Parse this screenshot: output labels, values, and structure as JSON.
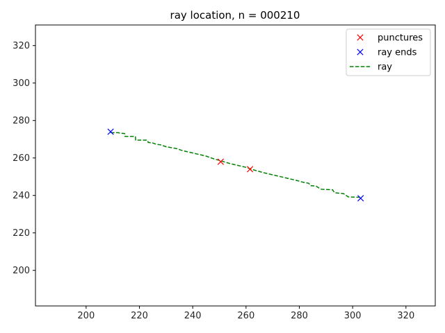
{
  "chart_data": {
    "type": "line",
    "title": "ray location, n = 000210",
    "xlabel": "",
    "ylabel": "",
    "xlim": [
      181,
      331
    ],
    "ylim": [
      181,
      331
    ],
    "xticks": [
      200,
      220,
      240,
      260,
      280,
      300,
      320
    ],
    "yticks": [
      200,
      220,
      240,
      260,
      280,
      300,
      320
    ],
    "grid": false,
    "legend_position": "top-right",
    "series": [
      {
        "name": "punctures",
        "style": "x-markers",
        "color": "#ff0000",
        "points": [
          [
            250.5,
            258
          ],
          [
            261.5,
            254
          ]
        ]
      },
      {
        "name": "ray ends",
        "style": "x-markers",
        "color": "#0000ff",
        "points": [
          [
            209.2,
            274
          ],
          [
            303,
            238.5
          ]
        ]
      },
      {
        "name": "ray",
        "style": "dashed-line",
        "color": "#008000",
        "points": [
          [
            209.2,
            273.5
          ],
          [
            212,
            273.5
          ],
          [
            212.6,
            273.3
          ],
          [
            214.5,
            273
          ],
          [
            214.6,
            271.5
          ],
          [
            218.5,
            271.5
          ],
          [
            218.6,
            269.5
          ],
          [
            223,
            269.5
          ],
          [
            223.3,
            268.3
          ],
          [
            225,
            268
          ],
          [
            226.3,
            267.3
          ],
          [
            228,
            267
          ],
          [
            230,
            266
          ],
          [
            232,
            265.5
          ],
          [
            234,
            265
          ],
          [
            236,
            264
          ],
          [
            239,
            263
          ],
          [
            242,
            262
          ],
          [
            245,
            261
          ],
          [
            248,
            259.5
          ],
          [
            250.5,
            258.5
          ],
          [
            254,
            257
          ],
          [
            257,
            256
          ],
          [
            260,
            255
          ],
          [
            262,
            254
          ],
          [
            264.4,
            253
          ],
          [
            267,
            252
          ],
          [
            270,
            251
          ],
          [
            273,
            250
          ],
          [
            276,
            249
          ],
          [
            279,
            248
          ],
          [
            281.5,
            247
          ],
          [
            283.5,
            246.5
          ],
          [
            284.3,
            245.2
          ],
          [
            286.3,
            245
          ],
          [
            287.3,
            244
          ],
          [
            288.3,
            243.3
          ],
          [
            292.5,
            243
          ],
          [
            293.2,
            241.4
          ],
          [
            296.5,
            241
          ],
          [
            298.4,
            239.2
          ],
          [
            303,
            239
          ]
        ]
      }
    ]
  }
}
